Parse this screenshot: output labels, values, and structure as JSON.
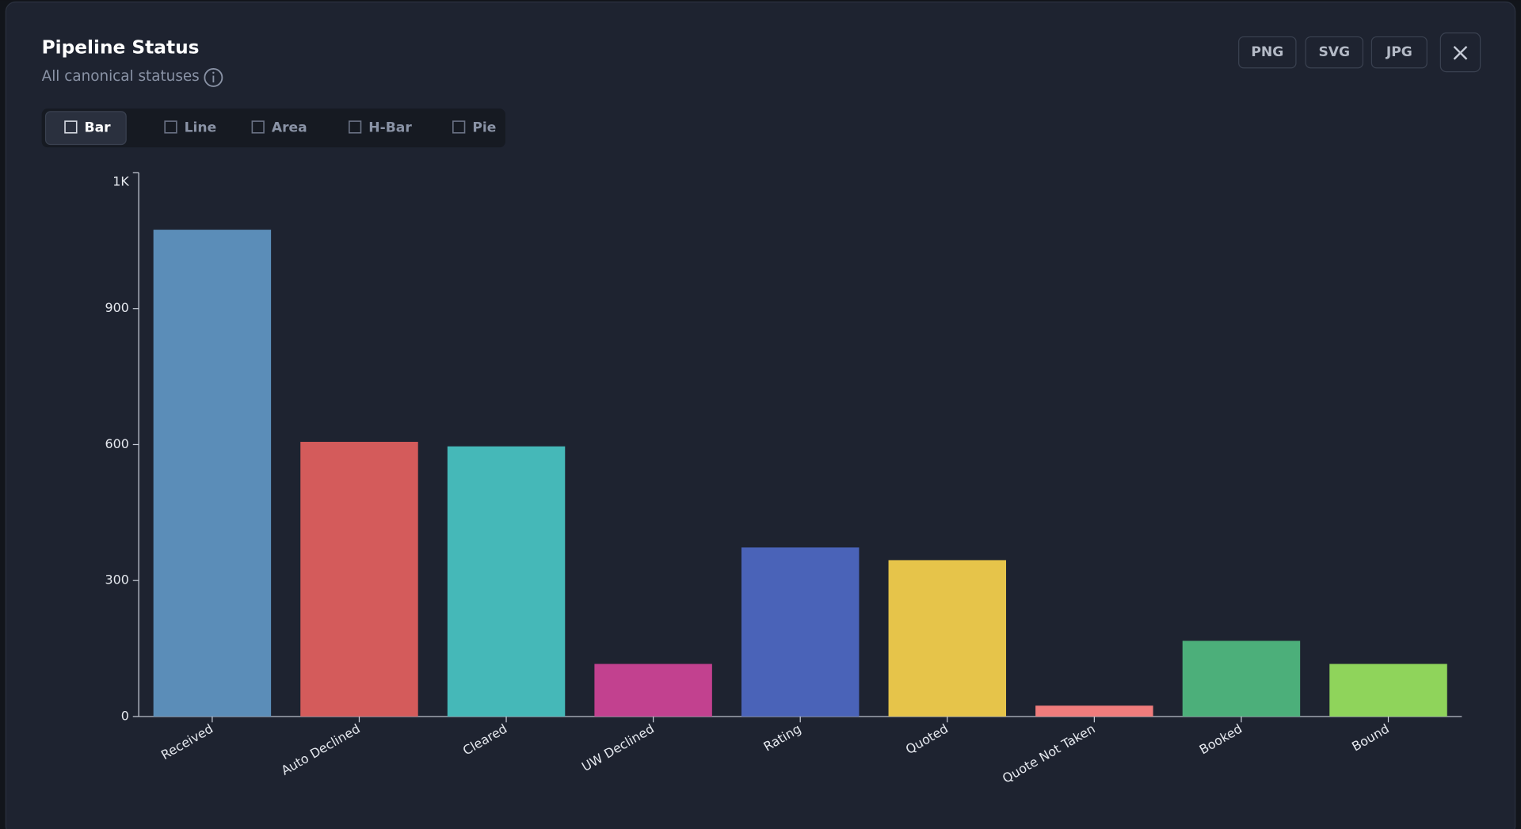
{
  "header": {
    "title": "Pipeline Status",
    "subtitle": "All canonical statuses"
  },
  "export_buttons": [
    "PNG",
    "SVG",
    "JPG"
  ],
  "chart_tabs": [
    "Bar",
    "Line",
    "Area",
    "H-Bar",
    "Pie"
  ],
  "chart_data": {
    "type": "bar",
    "categories": [
      "Received",
      "Auto Declined",
      "Cleared",
      "UW Declined",
      "Rating",
      "Quoted",
      "Quote Not Taken",
      "Booked",
      "Bound"
    ],
    "values": [
      1074,
      606,
      596,
      116,
      373,
      345,
      24,
      167,
      116
    ],
    "colors": [
      "#5b8db8",
      "#d45b5b",
      "#45b8b8",
      "#c2418f",
      "#4a63b8",
      "#e6c44a",
      "#f07c7c",
      "#4caf7a",
      "#8fd45b"
    ],
    "ylim": [
      0,
      1200
    ],
    "yticks": [
      0,
      300,
      600,
      900,
      {
        "value": 1200,
        "label": "1K"
      }
    ],
    "grid": false
  }
}
